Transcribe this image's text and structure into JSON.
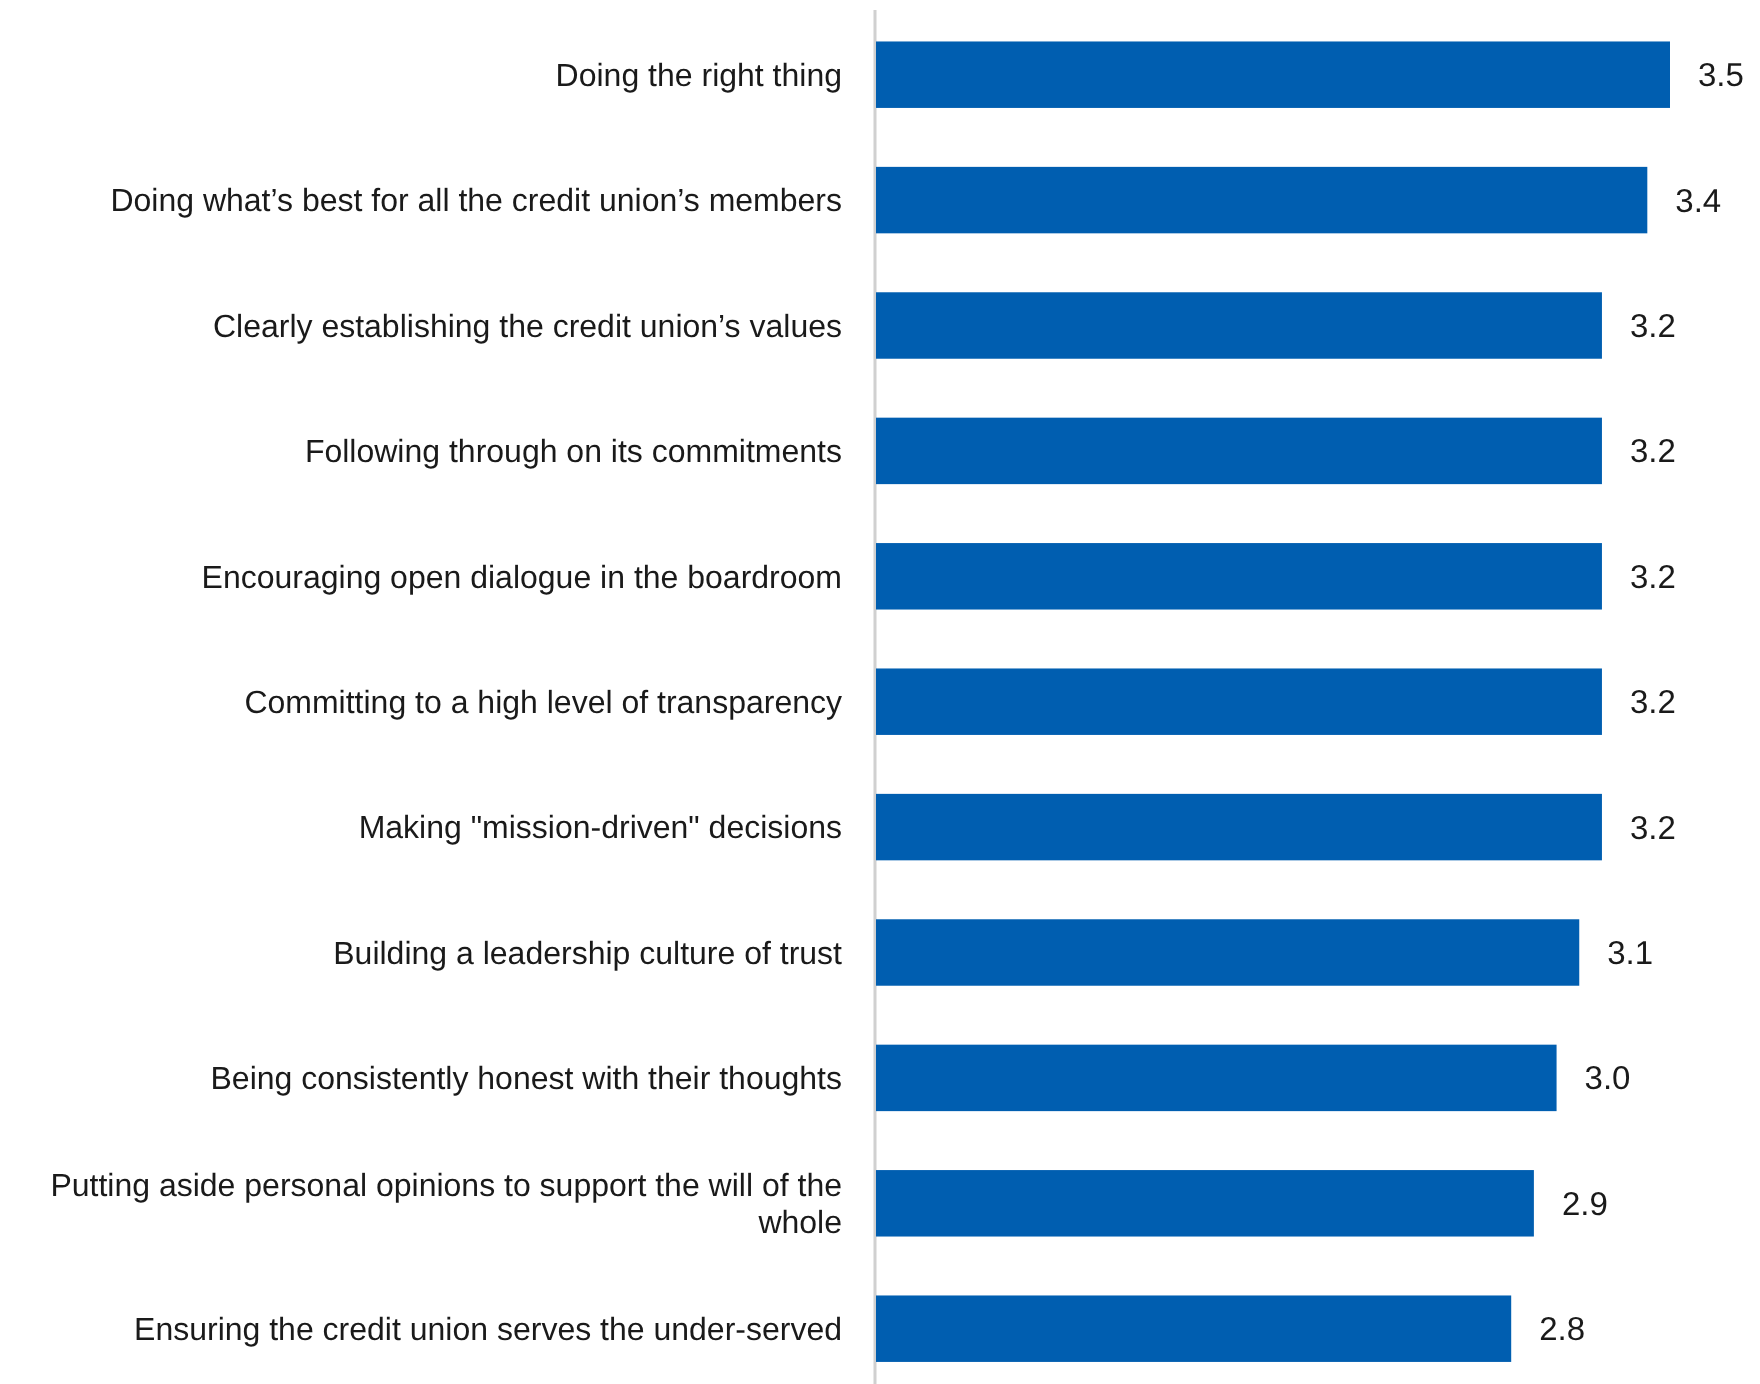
{
  "chart_data": {
    "type": "bar",
    "orientation": "horizontal",
    "tick_labels": "y",
    "categories": [
      "Doing the right thing",
      "Doing what’s best for all the credit union’s members",
      "Clearly establishing the credit union’s values",
      "Following through on its commitments",
      "Encouraging open dialogue in the boardroom",
      "Committing to a high level of transparency",
      "Making \"mission-driven\" decisions",
      "Building a leadership culture of trust",
      "Being consistently honest with their thoughts",
      "Putting aside personal opinions to support the will of the whole",
      "Ensuring the credit union serves the under-served"
    ],
    "values": [
      3.5,
      3.4,
      3.2,
      3.2,
      3.2,
      3.2,
      3.2,
      3.1,
      3.0,
      2.9,
      2.8
    ],
    "value_labels": [
      "3.5",
      "3.4",
      "3.2",
      "3.2",
      "3.2",
      "3.2",
      "3.2",
      "3.1",
      "3.0",
      "2.9",
      "2.8"
    ],
    "color": "#005eb0"
  }
}
